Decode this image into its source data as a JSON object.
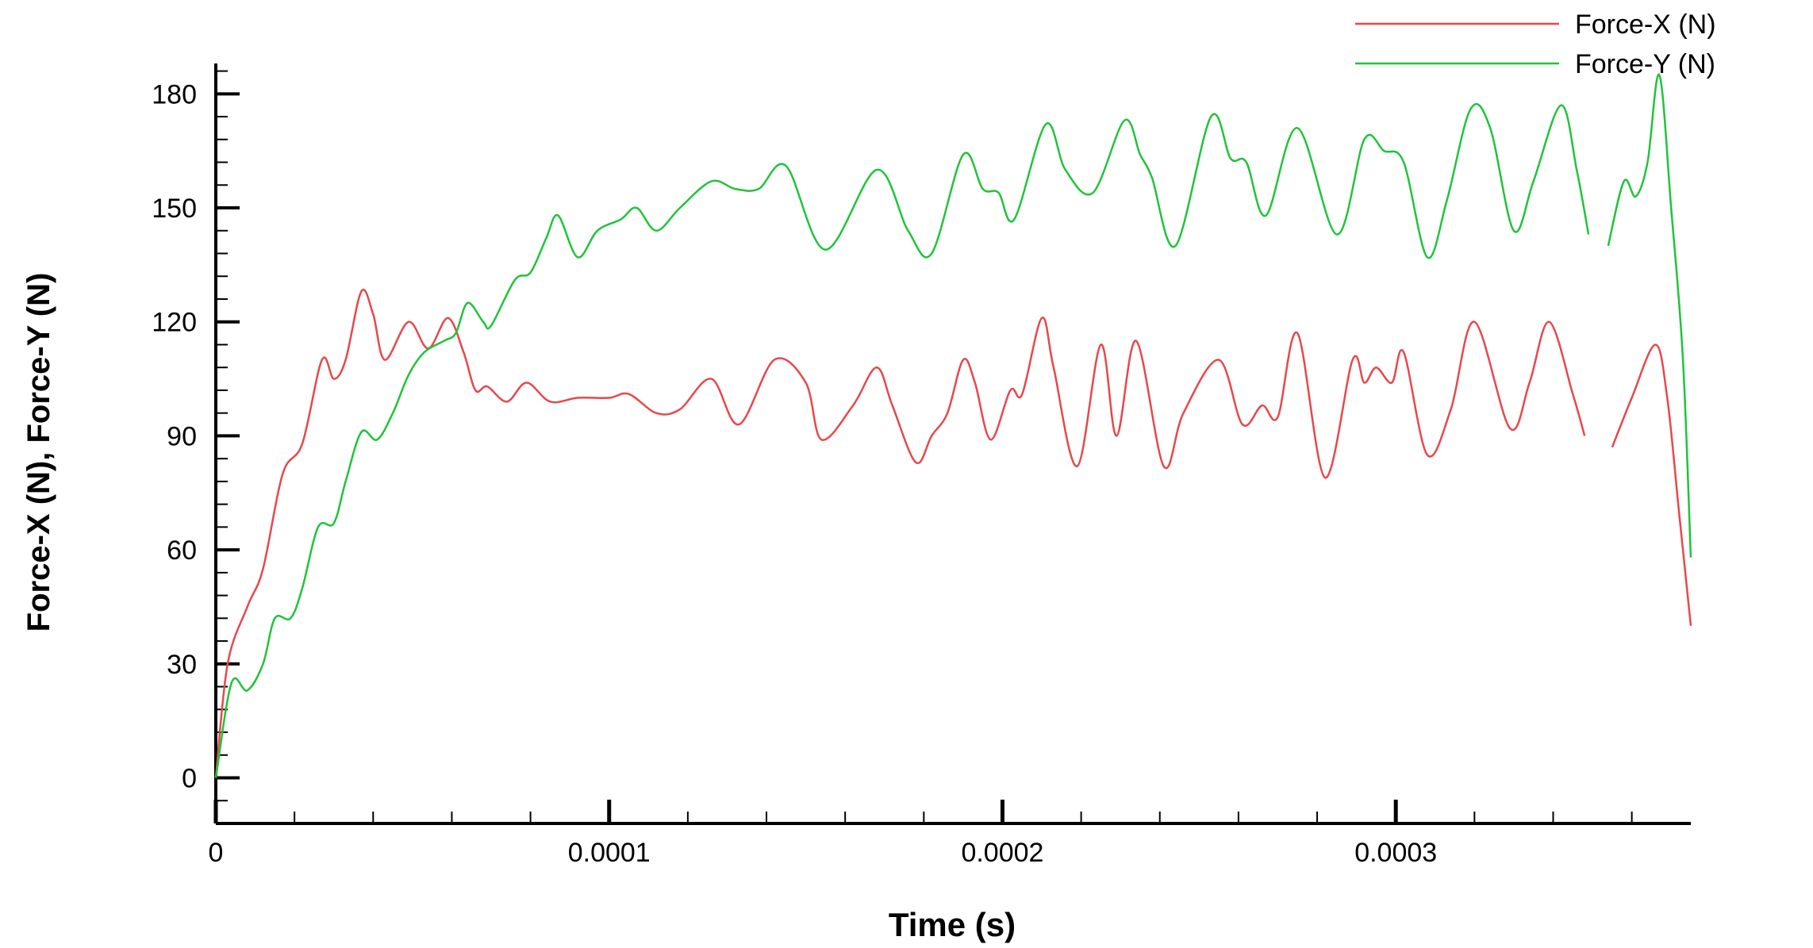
{
  "chart_data": {
    "type": "line",
    "xlabel": "Time (s)",
    "ylabel": "Force-X (N), Force-Y (N)",
    "xlim": [
      0,
      0.000375
    ],
    "ylim": [
      -12,
      188
    ],
    "x_ticks": [
      0,
      0.0001,
      0.0002,
      0.0003
    ],
    "x_tick_labels": [
      "0",
      "0.0001",
      "0.0002",
      "0.0003"
    ],
    "y_ticks": [
      0,
      30,
      60,
      90,
      120,
      150,
      180
    ],
    "y_tick_labels": [
      "0",
      "30",
      "60",
      "90",
      "120",
      "150",
      "180"
    ],
    "grid": false,
    "legend_position": "top-right",
    "series": [
      {
        "name": "Force-X (N)",
        "color": "#e8474c",
        "segments": [
          [
            [
              0,
              0
            ],
            [
              3e-06,
              30
            ],
            [
              8e-06,
              45
            ],
            [
              1.2e-05,
              55
            ],
            [
              1.7e-05,
              80
            ],
            [
              2.2e-05,
              88
            ],
            [
              2.7e-05,
              110
            ],
            [
              3e-05,
              105
            ],
            [
              3.3e-05,
              110
            ],
            [
              3.7e-05,
              128
            ],
            [
              4e-05,
              122
            ],
            [
              4.3e-05,
              110
            ],
            [
              4.9e-05,
              120
            ],
            [
              5.4e-05,
              113
            ],
            [
              5.9e-05,
              121
            ],
            [
              6.3e-05,
              112
            ],
            [
              6.6e-05,
              102
            ],
            [
              6.9e-05,
              103
            ],
            [
              7.4e-05,
              99
            ],
            [
              7.9e-05,
              104
            ],
            [
              8.5e-05,
              99
            ],
            [
              9.2e-05,
              100
            ],
            [
              0.0001,
              100
            ],
            [
              0.000105,
              101
            ],
            [
              0.000112,
              96
            ],
            [
              0.000118,
              97
            ],
            [
              0.000126,
              105
            ],
            [
              0.000133,
              93
            ],
            [
              0.000142,
              110
            ],
            [
              0.00015,
              104
            ],
            [
              0.000154,
              89
            ],
            [
              0.000162,
              98
            ],
            [
              0.000168,
              108
            ],
            [
              0.000172,
              98
            ],
            [
              0.000178,
              83
            ],
            [
              0.000182,
              90
            ],
            [
              0.000186,
              96
            ],
            [
              0.00019,
              110
            ],
            [
              0.000193,
              104
            ],
            [
              0.000197,
              89
            ],
            [
              0.000202,
              102
            ],
            [
              0.000205,
              101
            ],
            [
              0.00021,
              121
            ],
            [
              0.000213,
              108
            ],
            [
              0.000219,
              82
            ],
            [
              0.000225,
              114
            ],
            [
              0.000229,
              90
            ],
            [
              0.000234,
              115
            ],
            [
              0.000241,
              82
            ],
            [
              0.000246,
              96
            ],
            [
              0.000255,
              110
            ],
            [
              0.000261,
              93
            ],
            [
              0.000266,
              98
            ],
            [
              0.00027,
              95
            ],
            [
              0.000275,
              117
            ],
            [
              0.000282,
              79
            ],
            [
              0.000289,
              110
            ],
            [
              0.000292,
              104
            ],
            [
              0.000295,
              108
            ],
            [
              0.000299,
              104
            ],
            [
              0.000302,
              112
            ],
            [
              0.000308,
              85
            ],
            [
              0.000314,
              97
            ],
            [
              0.00032,
              120
            ],
            [
              0.000329,
              92
            ],
            [
              0.000334,
              104
            ],
            [
              0.000339,
              120
            ],
            [
              0.000345,
              101
            ],
            [
              0.000348,
              90
            ]
          ],
          [
            [
              0.000355,
              87
            ],
            [
              0.00036,
              100
            ],
            [
              0.000366,
              114
            ],
            [
              0.000369,
              100
            ],
            [
              0.000372,
              70
            ],
            [
              0.000375,
              40
            ]
          ]
        ]
      },
      {
        "name": "Force-Y (N)",
        "color": "#1fc43a",
        "segments": [
          [
            [
              0,
              0
            ],
            [
              4e-06,
              25
            ],
            [
              8e-06,
              23
            ],
            [
              1.2e-05,
              30
            ],
            [
              1.5e-05,
              42
            ],
            [
              1.9e-05,
              42
            ],
            [
              2.2e-05,
              50
            ],
            [
              2.6e-05,
              66
            ],
            [
              3e-05,
              67
            ],
            [
              3.3e-05,
              78
            ],
            [
              3.7e-05,
              91
            ],
            [
              4.1e-05,
              89
            ],
            [
              4.5e-05,
              96
            ],
            [
              4.9e-05,
              106
            ],
            [
              5.3e-05,
              112
            ],
            [
              5.8e-05,
              115
            ],
            [
              6.1e-05,
              117
            ],
            [
              6.4e-05,
              125
            ],
            [
              6.8e-05,
              120
            ],
            [
              7e-05,
              119
            ],
            [
              7.6e-05,
              131
            ],
            [
              8e-05,
              133
            ],
            [
              8.4e-05,
              142
            ],
            [
              8.7e-05,
              148
            ],
            [
              9.2e-05,
              137
            ],
            [
              9.7e-05,
              144
            ],
            [
              0.000103,
              147
            ],
            [
              0.000107,
              150
            ],
            [
              0.000112,
              144
            ],
            [
              0.000118,
              150
            ],
            [
              0.000126,
              157
            ],
            [
              0.000132,
              155
            ],
            [
              0.000138,
              155
            ],
            [
              0.000145,
              161
            ],
            [
              0.000155,
              139
            ],
            [
              0.000168,
              160
            ],
            [
              0.000176,
              144
            ],
            [
              0.000182,
              138
            ],
            [
              0.00019,
              164
            ],
            [
              0.000195,
              155
            ],
            [
              0.000199,
              154
            ],
            [
              0.000203,
              147
            ],
            [
              0.000211,
              172
            ],
            [
              0.000216,
              160
            ],
            [
              0.000223,
              154
            ],
            [
              0.000231,
              173
            ],
            [
              0.000235,
              164
            ],
            [
              0.000238,
              158
            ],
            [
              0.000244,
              140
            ],
            [
              0.000253,
              174
            ],
            [
              0.000258,
              163
            ],
            [
              0.000262,
              162
            ],
            [
              0.000267,
              148
            ],
            [
              0.000275,
              171
            ],
            [
              0.000285,
              143
            ],
            [
              0.000292,
              168
            ],
            [
              0.000297,
              165
            ],
            [
              0.000302,
              162
            ],
            [
              0.000308,
              137
            ],
            [
              0.000313,
              152
            ],
            [
              0.000319,
              176
            ],
            [
              0.000324,
              171
            ],
            [
              0.00033,
              144
            ],
            [
              0.000335,
              157
            ],
            [
              0.000342,
              177
            ],
            [
              0.000346,
              160
            ],
            [
              0.000349,
              143
            ]
          ],
          [
            [
              0.000354,
              140
            ],
            [
              0.000358,
              157
            ],
            [
              0.000361,
              153
            ],
            [
              0.000364,
              162
            ],
            [
              0.000367,
              185
            ],
            [
              0.00037,
              150
            ],
            [
              0.000373,
              110
            ],
            [
              0.000375,
              58
            ]
          ]
        ]
      }
    ]
  }
}
